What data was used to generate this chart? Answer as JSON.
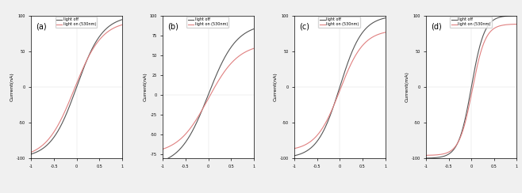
{
  "subplots": [
    {
      "label": "(a)",
      "ylabel": "Current(nA)",
      "ylim": [
        -100,
        100
      ],
      "yticks": [
        -100,
        -50,
        0,
        50,
        100
      ],
      "xlim": [
        -1,
        1
      ],
      "xticks": [
        -1,
        -0.5,
        0,
        0.5,
        1
      ],
      "curve_shape": "sigmoid_a",
      "light_off_color": "#555555",
      "light_on_color": "#e08080"
    },
    {
      "label": "(b)",
      "ylabel": "Current(nA)",
      "ylim": [
        -80,
        100
      ],
      "yticks": [
        -75,
        -50,
        -25,
        0,
        25,
        50,
        75,
        100
      ],
      "xlim": [
        -1,
        1
      ],
      "xticks": [
        -1,
        -0.5,
        0,
        0.5,
        1
      ],
      "curve_shape": "sigmoid_b",
      "light_off_color": "#555555",
      "light_on_color": "#e08080"
    },
    {
      "label": "(c)",
      "ylabel": "Current(nA)",
      "ylim": [
        -100,
        100
      ],
      "yticks": [
        -100,
        -50,
        0,
        50,
        100
      ],
      "xlim": [
        -1,
        1
      ],
      "xticks": [
        -1,
        -0.5,
        0,
        0.5,
        1
      ],
      "curve_shape": "sigmoid_c",
      "light_off_color": "#555555",
      "light_on_color": "#e08080"
    },
    {
      "label": "(d)",
      "ylabel": "Current(mA)",
      "ylim": [
        -100,
        100
      ],
      "yticks": [
        -100,
        -50,
        0,
        50,
        100
      ],
      "xlim": [
        -1,
        1
      ],
      "xticks": [
        -1,
        -0.5,
        0,
        0.5,
        1
      ],
      "curve_shape": "sigmoid_d",
      "light_off_color": "#555555",
      "light_on_color": "#e08080"
    }
  ],
  "legend_off": "light off",
  "legend_on": "light on (530nm)",
  "background_color": "#ffffff",
  "fig_facecolor": "#f0f0f0"
}
